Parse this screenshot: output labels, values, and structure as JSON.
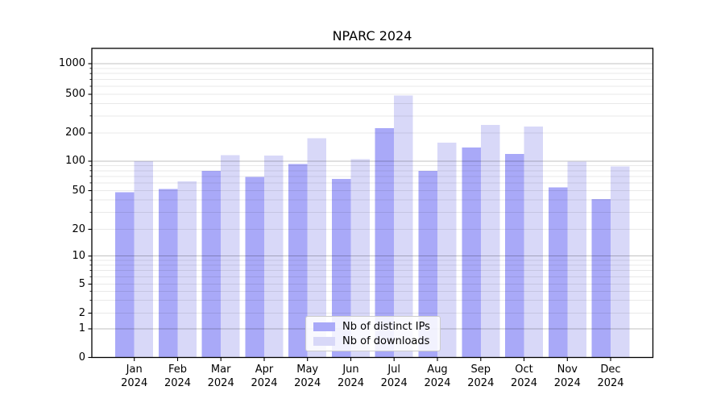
{
  "chart_data": {
    "type": "bar",
    "title": "NPARC 2024",
    "categories": [
      "Jan 2024",
      "Feb 2024",
      "Mar 2024",
      "Apr 2024",
      "May 2024",
      "Jun 2024",
      "Jul 2024",
      "Aug 2024",
      "Sep 2024",
      "Oct 2024",
      "Nov 2024",
      "Dec 2024"
    ],
    "series": [
      {
        "key": "distinct-ips",
        "name": "Nb of distinct IPs",
        "color": "#a9a9f8",
        "values": [
          48,
          52,
          80,
          69,
          94,
          66,
          225,
          80,
          140,
          120,
          54,
          41
        ]
      },
      {
        "key": "downloads",
        "name": "Nb of downloads",
        "color": "#d8d8f8",
        "values": [
          100,
          62,
          116,
          115,
          175,
          105,
          487,
          158,
          242,
          233,
          99,
          88
        ]
      }
    ],
    "xlabel": "",
    "ylabel": "",
    "yscale": "symlog",
    "yticks": [
      0,
      1,
      2,
      5,
      10,
      20,
      50,
      100,
      200,
      500,
      1000
    ],
    "ylim": [
      0,
      1400
    ],
    "grid": "major and minor horizontal gridlines",
    "legend_position": "lower center"
  },
  "colors": {
    "spine": "#000000",
    "grid_major": "#c2c2c2",
    "grid_minor": "#e9e9e9",
    "legend_border": "#cccccc",
    "legend_background": "#ffffff"
  }
}
